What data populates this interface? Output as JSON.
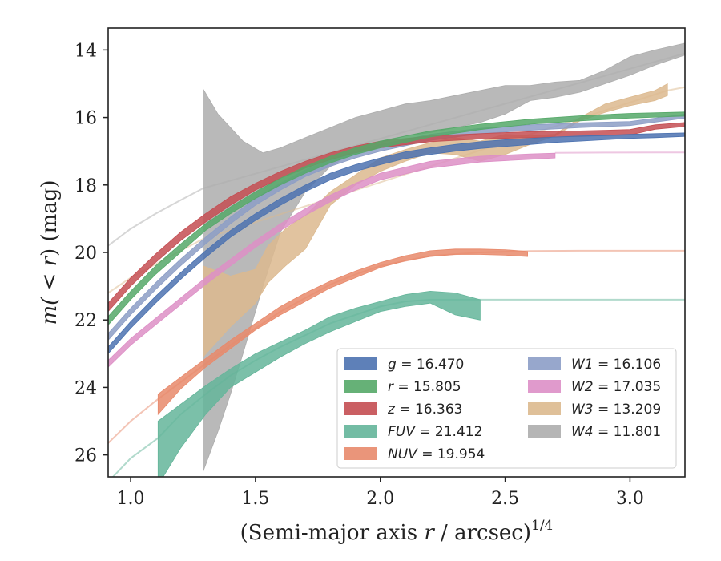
{
  "chart_data": {
    "type": "line",
    "title": "",
    "xlabel_main": "(Semi-major axis ",
    "xlabel_r": "r",
    "xlabel_unit": " / arcsec)",
    "xlabel_exp": "1/4",
    "ylabel_main": "m(",
    "ylabel_lt": " < ",
    "ylabel_r": "r",
    "ylabel_close": ") (mag)",
    "xlim": [
      0.91,
      3.22
    ],
    "ylim": [
      26.65,
      13.35
    ],
    "y_inverted": true,
    "xticks": [
      1.0,
      1.5,
      2.0,
      2.5,
      3.0
    ],
    "xtick_labels": [
      "1.0",
      "1.5",
      "2.0",
      "2.5",
      "3.0"
    ],
    "yticks": [
      14,
      16,
      18,
      20,
      22,
      24,
      26
    ],
    "ytick_labels": [
      "14",
      "16",
      "18",
      "20",
      "22",
      "24",
      "26"
    ],
    "grid": false,
    "legend_position": "lower-right",
    "series": [
      {
        "name": "g",
        "value": "16.470",
        "color": "#4c72b0",
        "band_x": [
          0.91,
          1.0,
          1.1,
          1.2,
          1.3,
          1.4,
          1.5,
          1.6,
          1.7,
          1.8,
          1.9,
          2.0,
          2.1,
          2.2,
          2.3,
          2.4,
          2.5,
          2.6,
          2.7,
          2.8,
          2.9,
          3.0,
          3.1,
          3.22
        ],
        "band_lo": [
          22.8,
          22.05,
          21.3,
          20.6,
          19.95,
          19.35,
          18.85,
          18.4,
          18.0,
          17.65,
          17.4,
          17.2,
          17.02,
          16.9,
          16.8,
          16.72,
          16.66,
          16.62,
          16.58,
          16.55,
          16.53,
          16.5,
          16.48,
          16.46
        ],
        "band_hi": [
          23.0,
          22.25,
          21.5,
          20.8,
          20.15,
          19.55,
          19.05,
          18.6,
          18.2,
          17.85,
          17.6,
          17.4,
          17.22,
          17.1,
          17.0,
          16.92,
          16.86,
          16.8,
          16.74,
          16.7,
          16.66,
          16.62,
          16.6,
          16.56
        ],
        "ext_x": [],
        "ext_y": []
      },
      {
        "name": "r",
        "value": "15.805",
        "color": "#55a868",
        "band_x": [
          0.91,
          1.0,
          1.1,
          1.2,
          1.3,
          1.4,
          1.5,
          1.6,
          1.7,
          1.8,
          1.9,
          2.0,
          2.2,
          2.4,
          2.6,
          2.8,
          3.0,
          3.22
        ],
        "band_lo": [
          21.9,
          21.15,
          20.4,
          19.75,
          19.15,
          18.65,
          18.2,
          17.8,
          17.45,
          17.15,
          16.9,
          16.7,
          16.4,
          16.2,
          16.05,
          15.95,
          15.88,
          15.84
        ],
        "band_hi": [
          22.15,
          21.4,
          20.65,
          20.0,
          19.35,
          18.85,
          18.4,
          18.0,
          17.65,
          17.35,
          17.1,
          16.9,
          16.58,
          16.36,
          16.2,
          16.1,
          16.02,
          15.96
        ],
        "ext_x": [],
        "ext_y": []
      },
      {
        "name": "z",
        "value": "16.363",
        "color": "#c44e52",
        "band_x": [
          0.91,
          1.0,
          1.1,
          1.2,
          1.3,
          1.4,
          1.5,
          1.6,
          1.7,
          1.8,
          1.9,
          2.0,
          2.2,
          2.4,
          2.6,
          2.8,
          3.0,
          3.1,
          3.22
        ],
        "band_lo": [
          21.5,
          20.75,
          20.05,
          19.4,
          18.85,
          18.35,
          17.95,
          17.6,
          17.3,
          17.05,
          16.85,
          16.7,
          16.55,
          16.48,
          16.42,
          16.4,
          16.36,
          16.22,
          16.15
        ],
        "band_hi": [
          21.75,
          21.0,
          20.3,
          19.65,
          19.1,
          18.6,
          18.15,
          17.8,
          17.5,
          17.25,
          17.05,
          16.9,
          16.72,
          16.64,
          16.6,
          16.56,
          16.52,
          16.35,
          16.27
        ],
        "ext_x": [],
        "ext_y": []
      },
      {
        "name": "FUV",
        "value": "21.412",
        "color": "#64b59a",
        "band_x": [
          1.11,
          1.2,
          1.3,
          1.4,
          1.5,
          1.6,
          1.7,
          1.8,
          1.9,
          2.0,
          2.1,
          2.2,
          2.3,
          2.4
        ],
        "band_lo": [
          25.0,
          24.5,
          23.95,
          23.45,
          23.0,
          22.65,
          22.3,
          21.9,
          21.65,
          21.45,
          21.25,
          21.15,
          21.2,
          21.4
        ],
        "band_hi": [
          26.9,
          25.8,
          24.8,
          24.0,
          23.55,
          23.1,
          22.7,
          22.35,
          22.05,
          21.75,
          21.6,
          21.5,
          21.85,
          22.0
        ],
        "ext_x": [
          0.91,
          1.0,
          1.11,
          1.2,
          1.3,
          1.4,
          1.5,
          1.6,
          1.7,
          1.8,
          1.9,
          2.0,
          2.1,
          2.2,
          2.3,
          2.4,
          2.6,
          2.8,
          3.0,
          3.22
        ],
        "ext_y": [
          26.8,
          26.1,
          25.5,
          24.8,
          24.2,
          23.65,
          23.2,
          22.8,
          22.45,
          22.1,
          21.85,
          21.6,
          21.45,
          21.4,
          21.4,
          21.4,
          21.4,
          21.4,
          21.4,
          21.4
        ]
      },
      {
        "name": "NUV",
        "value": "19.954",
        "color": "#e8896b",
        "band_x": [
          1.11,
          1.2,
          1.3,
          1.4,
          1.5,
          1.6,
          1.7,
          1.8,
          1.9,
          2.0,
          2.1,
          2.2,
          2.3,
          2.4,
          2.5,
          2.59
        ],
        "band_lo": [
          24.2,
          23.7,
          23.15,
          22.6,
          22.1,
          21.6,
          21.2,
          20.85,
          20.55,
          20.3,
          20.1,
          19.95,
          19.9,
          19.9,
          19.92,
          19.97
        ],
        "band_hi": [
          24.8,
          24.05,
          23.4,
          22.85,
          22.3,
          21.85,
          21.45,
          21.05,
          20.75,
          20.45,
          20.25,
          20.12,
          20.06,
          20.06,
          20.08,
          20.12
        ],
        "ext_x": [
          0.91,
          1.0,
          1.1,
          1.2,
          1.3,
          1.4,
          1.5,
          1.6,
          1.7,
          1.8,
          1.9,
          2.0,
          2.2,
          2.4,
          2.6,
          2.8,
          3.0,
          3.22
        ],
        "ext_y": [
          25.65,
          25.0,
          24.4,
          23.85,
          23.3,
          22.75,
          22.25,
          21.75,
          21.35,
          20.95,
          20.65,
          20.4,
          20.1,
          20.0,
          19.96,
          19.95,
          19.95,
          19.95
        ]
      },
      {
        "name": "W1",
        "value": "16.106",
        "color": "#8c9dc6",
        "band_x": [
          0.91,
          1.0,
          1.1,
          1.2,
          1.3,
          1.4,
          1.5,
          1.6,
          1.7,
          1.8,
          1.9,
          2.0,
          2.2,
          2.4,
          2.6,
          2.8,
          3.0,
          3.22
        ],
        "band_lo": [
          22.4,
          21.65,
          20.9,
          20.2,
          19.55,
          18.95,
          18.4,
          17.95,
          17.55,
          17.25,
          17.0,
          16.8,
          16.5,
          16.32,
          16.22,
          16.16,
          16.12,
          15.9
        ],
        "band_hi": [
          22.6,
          21.85,
          21.1,
          20.4,
          19.75,
          19.15,
          18.6,
          18.15,
          17.75,
          17.45,
          17.2,
          17.0,
          16.68,
          16.48,
          16.38,
          16.3,
          16.24,
          16.02
        ],
        "ext_x": [],
        "ext_y": []
      },
      {
        "name": "W2",
        "value": "17.035",
        "color": "#dd8fc6",
        "band_x": [
          0.91,
          1.0,
          1.1,
          1.2,
          1.3,
          1.4,
          1.5,
          1.6,
          1.7,
          1.8,
          1.9,
          2.0,
          2.2,
          2.4,
          2.6,
          2.7
        ],
        "band_lo": [
          23.2,
          22.55,
          21.95,
          21.35,
          20.75,
          20.2,
          19.65,
          19.15,
          18.7,
          18.3,
          17.95,
          17.65,
          17.3,
          17.15,
          17.08,
          17.06
        ],
        "band_hi": [
          23.4,
          22.75,
          22.15,
          21.55,
          20.95,
          20.4,
          19.85,
          19.35,
          18.9,
          18.5,
          18.15,
          17.85,
          17.5,
          17.32,
          17.24,
          17.2
        ],
        "ext_x": [
          2.7,
          2.9,
          3.1,
          3.22
        ],
        "ext_y": [
          17.05,
          17.04,
          17.035,
          17.035
        ]
      },
      {
        "name": "W3",
        "value": "13.209",
        "color": "#dcb98e",
        "band_x": [
          1.29,
          1.4,
          1.5,
          1.55,
          1.62,
          1.7,
          1.8,
          1.9,
          2.0,
          2.1,
          2.2,
          2.3,
          2.4,
          2.5,
          2.6,
          2.7,
          2.8,
          2.9,
          3.0,
          3.1,
          3.15
        ],
        "band_lo": [
          20.4,
          20.7,
          20.5,
          19.8,
          19.3,
          18.9,
          18.2,
          17.7,
          17.2,
          16.95,
          16.75,
          16.6,
          16.7,
          16.5,
          16.55,
          16.5,
          16.0,
          15.6,
          15.4,
          15.2,
          15.0
        ],
        "band_hi": [
          23.1,
          22.2,
          21.5,
          20.9,
          20.4,
          19.9,
          18.6,
          18.0,
          17.6,
          17.3,
          17.05,
          17.1,
          17.3,
          17.1,
          16.8,
          16.55,
          16.1,
          15.85,
          15.65,
          15.5,
          15.35
        ],
        "ext_x": [
          0.91,
          1.0,
          1.1,
          1.2,
          1.29,
          3.15,
          3.22
        ],
        "ext_y": [
          21.2,
          20.75,
          20.35,
          19.95,
          19.6,
          15.2,
          15.1
        ]
      },
      {
        "name": "W4",
        "value": "11.801",
        "color": "#adadad",
        "band_x": [
          1.29,
          1.35,
          1.4,
          1.45,
          1.53,
          1.6,
          1.7,
          1.8,
          1.9,
          2.0,
          2.1,
          2.2,
          2.3,
          2.4,
          2.5,
          2.6,
          2.7,
          2.8,
          2.9,
          3.0,
          3.1,
          3.22
        ],
        "band_lo": [
          15.15,
          15.9,
          16.3,
          16.7,
          17.05,
          16.9,
          16.6,
          16.3,
          16.0,
          15.8,
          15.6,
          15.5,
          15.35,
          15.2,
          15.05,
          15.05,
          14.95,
          14.9,
          14.6,
          14.2,
          14.0,
          13.8
        ],
        "band_hi": [
          26.5,
          25.3,
          24.2,
          23.0,
          21.0,
          19.4,
          18.2,
          17.45,
          17.0,
          16.75,
          16.55,
          16.45,
          16.3,
          16.15,
          15.9,
          15.5,
          15.4,
          15.25,
          15.0,
          14.75,
          14.45,
          14.15
        ],
        "ext_x": [
          0.91,
          1.0,
          1.1,
          1.2,
          1.29,
          3.22
        ],
        "ext_y": [
          19.8,
          19.3,
          18.85,
          18.45,
          18.1,
          14.1
        ]
      }
    ]
  }
}
